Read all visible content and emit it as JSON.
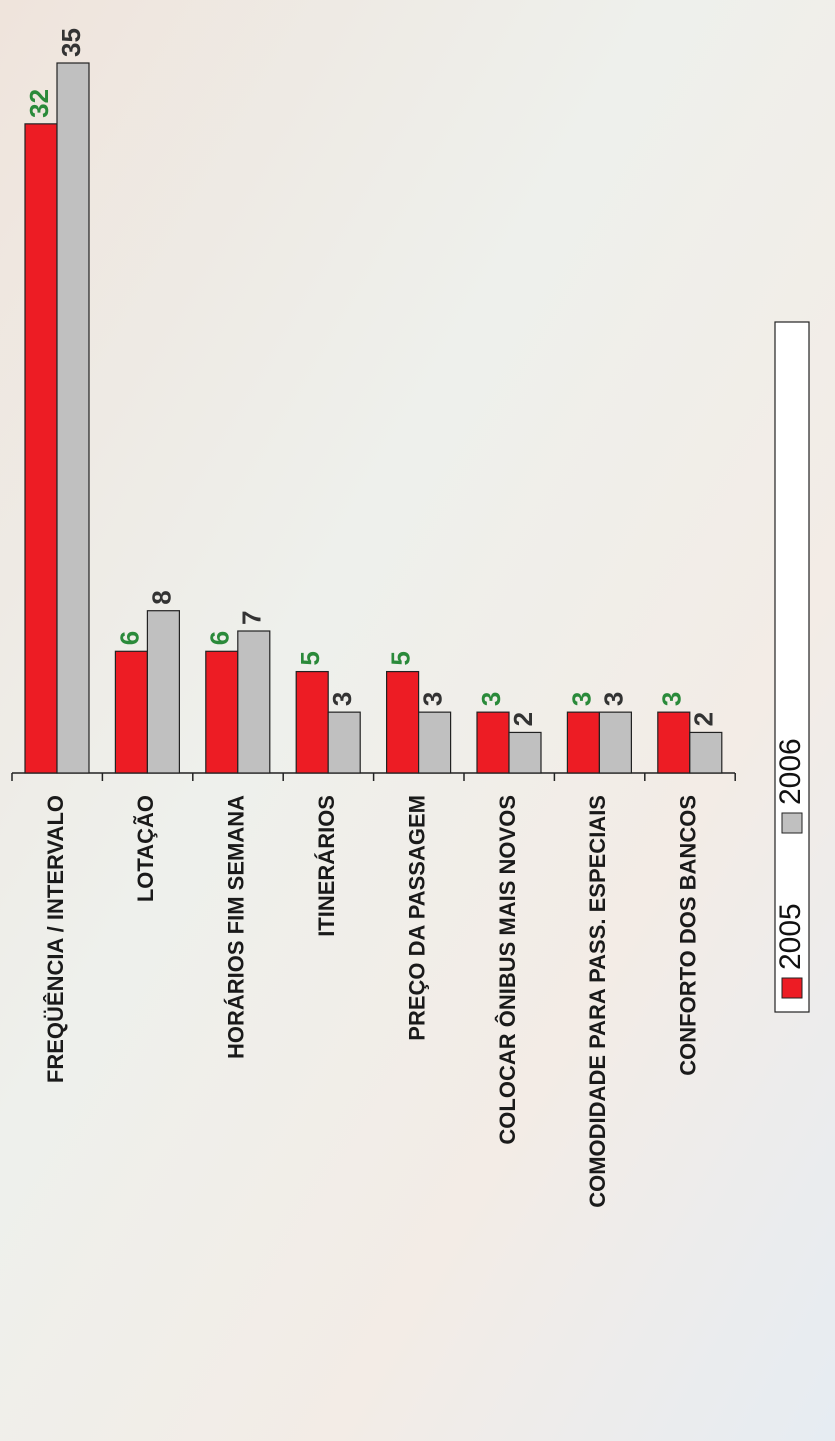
{
  "chart_data": {
    "type": "bar",
    "categories": [
      "FREQÜÊNCIA / INTERVALO",
      "LOTAÇÃO",
      "HORÁRIOS FIM SEMANA",
      "ITINERÁRIOS",
      "PREÇO DA PASSAGEM",
      "COLOCAR  ÔNIBUS MAIS NOVOS",
      "COMODIDADE PARA PASS. ESPECIAIS",
      "CONFORTO DOS BANCOS"
    ],
    "series": [
      {
        "name": "2005",
        "color": "#ed1c24",
        "label_color": "#2a8a3a",
        "values": [
          32,
          6,
          6,
          5,
          5,
          3,
          3,
          3
        ]
      },
      {
        "name": "2006",
        "color": "#c0c0c0",
        "label_color": "#333333",
        "values": [
          35,
          8,
          7,
          3,
          3,
          2,
          3,
          2
        ]
      }
    ]
  }
}
